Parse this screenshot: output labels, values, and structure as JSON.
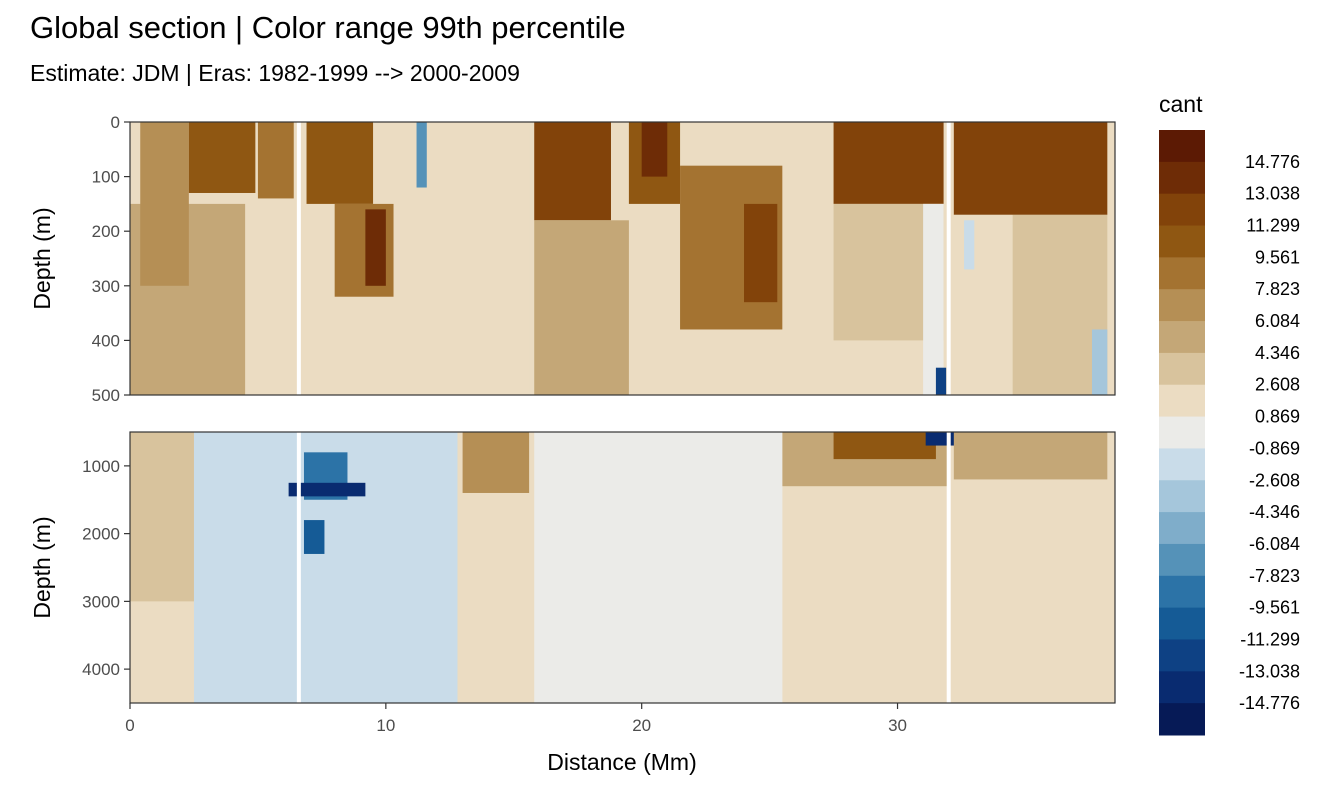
{
  "chart_data": {
    "type": "heatmap",
    "title": "Global section | Color range 99th percentile",
    "subtitle": "Estimate: JDM  | Eras: 1982-1999 --> 2000-2009",
    "xlabel": "Distance (Mm)",
    "ylabel": "Depth (m)",
    "xlim": [
      0,
      38.5
    ],
    "x_ticks": [
      0,
      10,
      20,
      30
    ],
    "panels": [
      {
        "ylim": [
          500,
          0
        ],
        "y_ticks": [
          0,
          100,
          200,
          300,
          400,
          500
        ]
      },
      {
        "ylim": [
          4500,
          500
        ],
        "y_ticks": [
          1000,
          2000,
          3000,
          4000
        ]
      }
    ],
    "gaps_x": [
      6.6,
      32.0
    ],
    "legend": {
      "title": "cant",
      "placement": "right",
      "labels": [
        "14.776",
        "13.038",
        "11.299",
        "9.561",
        "7.823",
        "6.084",
        "4.346",
        "2.608",
        "0.869",
        "-0.869",
        "-2.608",
        "-4.346",
        "-6.084",
        "-7.823",
        "-9.561",
        "-11.299",
        "-13.038",
        "-14.776"
      ],
      "colors": [
        "#5c1a04",
        "#6e2c06",
        "#82430a",
        "#8f5712",
        "#a47331",
        "#b58f55",
        "#c4a777",
        "#d8c39d",
        "#ebdcc2",
        "#ebebe8",
        "#c9dce9",
        "#a5c6db",
        "#7fadca",
        "#5592b8",
        "#2c73a7",
        "#155b96",
        "#0e4184",
        "#092b70",
        "#061a56"
      ]
    },
    "regions": [
      {
        "panel": 0,
        "x0": 0,
        "x1": 38.5,
        "y0": 0,
        "y1": 500,
        "cant": 2.5
      },
      {
        "panel": 0,
        "x0": 0,
        "x1": 4.5,
        "y0": 150,
        "y1": 500,
        "cant": 5.5
      },
      {
        "panel": 0,
        "x0": 0.4,
        "x1": 2.3,
        "y0": 0,
        "y1": 300,
        "cant": 7.0
      },
      {
        "panel": 0,
        "x0": 2.3,
        "x1": 4.9,
        "y0": 0,
        "y1": 130,
        "cant": 11.0
      },
      {
        "panel": 0,
        "x0": 5.0,
        "x1": 6.4,
        "y0": 0,
        "y1": 140,
        "cant": 9.5
      },
      {
        "panel": 0,
        "x0": 6.9,
        "x1": 9.5,
        "y0": 0,
        "y1": 150,
        "cant": 10.5
      },
      {
        "panel": 0,
        "x0": 8.0,
        "x1": 10.3,
        "y0": 150,
        "y1": 320,
        "cant": 8.5
      },
      {
        "panel": 0,
        "x0": 9.2,
        "x1": 10.0,
        "y0": 160,
        "y1": 300,
        "cant": 13.5
      },
      {
        "panel": 0,
        "x0": 10.8,
        "x1": 12.8,
        "y0": 0,
        "y1": 500,
        "cant": 1.0
      },
      {
        "panel": 0,
        "x0": 11.2,
        "x1": 11.6,
        "y0": 0,
        "y1": 120,
        "cant": -6.5
      },
      {
        "panel": 0,
        "x0": 13.0,
        "x1": 15.6,
        "y0": 0,
        "y1": 500,
        "cant": 2.0
      },
      {
        "panel": 0,
        "x0": 15.8,
        "x1": 18.8,
        "y0": 0,
        "y1": 180,
        "cant": 12.5
      },
      {
        "panel": 0,
        "x0": 15.8,
        "x1": 19.5,
        "y0": 180,
        "y1": 500,
        "cant": 4.5
      },
      {
        "panel": 0,
        "x0": 19.5,
        "x1": 21.5,
        "y0": 0,
        "y1": 150,
        "cant": 11.0
      },
      {
        "panel": 0,
        "x0": 20.0,
        "x1": 21.0,
        "y0": 0,
        "y1": 100,
        "cant": 14.0
      },
      {
        "panel": 0,
        "x0": 21.5,
        "x1": 25.5,
        "y0": 80,
        "y1": 380,
        "cant": 9.0
      },
      {
        "panel": 0,
        "x0": 24.0,
        "x1": 25.3,
        "y0": 150,
        "y1": 330,
        "cant": 13.0
      },
      {
        "panel": 0,
        "x0": 25.5,
        "x1": 27.5,
        "y0": 0,
        "y1": 500,
        "cant": 2.0
      },
      {
        "panel": 0,
        "x0": 27.5,
        "x1": 31.8,
        "y0": 0,
        "y1": 150,
        "cant": 11.3
      },
      {
        "panel": 0,
        "x0": 27.5,
        "x1": 31.8,
        "y0": 150,
        "y1": 400,
        "cant": 4.0
      },
      {
        "panel": 0,
        "x0": 31.0,
        "x1": 31.8,
        "y0": 150,
        "y1": 500,
        "cant": 0.0
      },
      {
        "panel": 0,
        "x0": 31.5,
        "x1": 31.9,
        "y0": 450,
        "y1": 500,
        "cant": -12.0
      },
      {
        "panel": 0,
        "x0": 32.2,
        "x1": 38.2,
        "y0": 0,
        "y1": 170,
        "cant": 11.3
      },
      {
        "panel": 0,
        "x0": 32.2,
        "x1": 34.5,
        "y0": 170,
        "y1": 500,
        "cant": 1.5
      },
      {
        "panel": 0,
        "x0": 32.6,
        "x1": 33.0,
        "y0": 180,
        "y1": 270,
        "cant": -2.5
      },
      {
        "panel": 0,
        "x0": 34.5,
        "x1": 38.2,
        "y0": 170,
        "y1": 500,
        "cant": 4.0
      },
      {
        "panel": 0,
        "x0": 37.6,
        "x1": 38.2,
        "y0": 380,
        "y1": 500,
        "cant": -3.5
      },
      {
        "panel": 1,
        "x0": 0,
        "x1": 38.5,
        "y0": 500,
        "y1": 4500,
        "cant": 2.5
      },
      {
        "panel": 1,
        "x0": 0,
        "x1": 3.0,
        "y0": 500,
        "y1": 3000,
        "cant": 4.0
      },
      {
        "panel": 1,
        "x0": 2.5,
        "x1": 12.8,
        "y0": 500,
        "y1": 4500,
        "cant": -1.5
      },
      {
        "panel": 1,
        "x0": 6.8,
        "x1": 8.5,
        "y0": 800,
        "y1": 1500,
        "cant": -9.5
      },
      {
        "panel": 1,
        "x0": 6.2,
        "x1": 9.2,
        "y0": 1250,
        "y1": 1450,
        "cant": -14.0
      },
      {
        "panel": 1,
        "x0": 6.8,
        "x1": 7.6,
        "y0": 1800,
        "y1": 2300,
        "cant": -10.0
      },
      {
        "panel": 1,
        "x0": 13.0,
        "x1": 15.6,
        "y0": 500,
        "y1": 1400,
        "cant": 7.0
      },
      {
        "panel": 1,
        "x0": 15.8,
        "x1": 25.5,
        "y0": 500,
        "y1": 4500,
        "cant": 0.0
      },
      {
        "panel": 1,
        "x0": 25.5,
        "x1": 32.0,
        "y0": 500,
        "y1": 1300,
        "cant": 5.0
      },
      {
        "panel": 1,
        "x0": 27.5,
        "x1": 31.5,
        "y0": 500,
        "y1": 900,
        "cant": 10.0
      },
      {
        "panel": 1,
        "x0": 31.1,
        "x1": 32.3,
        "y0": 500,
        "y1": 700,
        "cant": -14.0
      },
      {
        "panel": 1,
        "x0": 32.2,
        "x1": 38.2,
        "y0": 500,
        "y1": 1200,
        "cant": 5.0
      }
    ]
  }
}
